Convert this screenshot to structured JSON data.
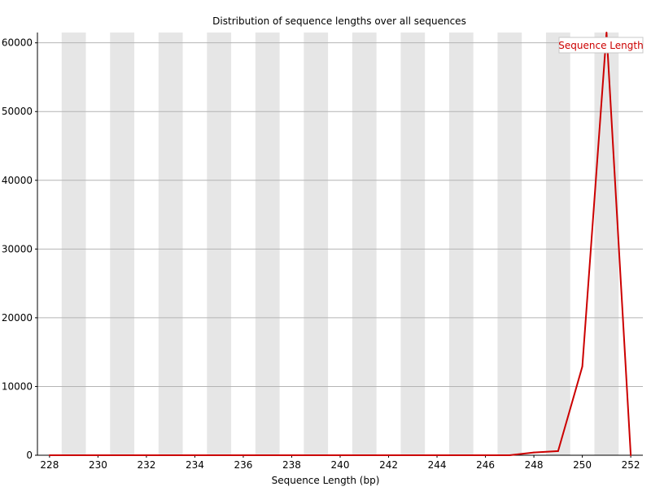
{
  "chart_data": {
    "type": "line",
    "title": "Distribution of sequence lengths over all sequences",
    "xlabel": "Sequence Length (bp)",
    "ylabel": "",
    "x": [
      228,
      229,
      230,
      231,
      232,
      233,
      234,
      235,
      236,
      237,
      238,
      239,
      240,
      241,
      242,
      243,
      244,
      245,
      246,
      247,
      248,
      249,
      250,
      251,
      252
    ],
    "x_tick_labels": [
      "228",
      "230",
      "232",
      "234",
      "236",
      "238",
      "240",
      "242",
      "244",
      "246",
      "248",
      "250",
      "252"
    ],
    "y_ticks": [
      0,
      10000,
      20000,
      30000,
      40000,
      50000,
      60000
    ],
    "y_tick_labels": [
      "0",
      "10000",
      "20000",
      "30000",
      "40000",
      "50000",
      "60000"
    ],
    "ylim": [
      0,
      61500
    ],
    "xlim": [
      227.5,
      252.5
    ],
    "series": [
      {
        "name": "Sequence Length",
        "color": "#cc0000",
        "values": [
          0,
          0,
          0,
          0,
          0,
          0,
          0,
          0,
          0,
          0,
          0,
          0,
          0,
          0,
          0,
          0,
          0,
          0,
          0,
          0,
          400,
          600,
          12900,
          61500,
          0
        ]
      }
    ],
    "legend_position": "top-right",
    "background_bands": "alternating grey vertical bands",
    "grid": "horizontal gridlines"
  }
}
